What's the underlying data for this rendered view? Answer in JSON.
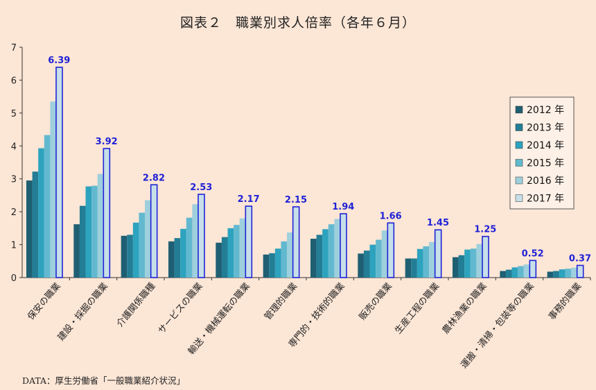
{
  "chart_data": {
    "type": "bar",
    "title": "図表２　職業別求人倍率（各年６月）",
    "source": "DATA：厚生労働省「一般職業紹介状況」",
    "ylim": [
      0,
      7
    ],
    "yticks": [
      "0",
      "1",
      "2",
      "3",
      "4",
      "5",
      "6",
      "7"
    ],
    "grid": false,
    "legend_position": "right",
    "categories": [
      "保安の職業",
      "建設・採掘の職業",
      "介護関係職種",
      "サービスの職業",
      "輸送・機械運転の職業",
      "管理的職業",
      "専門的・技術的職業",
      "販売の職業",
      "生産工程の職業",
      "農林漁業の職業",
      "運搬・清掃・包装等の職業",
      "事務的職業"
    ],
    "series": [
      {
        "name": "2012 年",
        "color": "#1f5f73",
        "values": [
          2.95,
          1.62,
          1.27,
          1.1,
          1.06,
          0.7,
          1.18,
          0.73,
          0.58,
          0.62,
          0.2,
          0.18
        ]
      },
      {
        "name": "2013 年",
        "color": "#227d95",
        "values": [
          3.22,
          2.18,
          1.3,
          1.2,
          1.23,
          0.74,
          1.3,
          0.82,
          0.58,
          0.68,
          0.24,
          0.2
        ]
      },
      {
        "name": "2014 年",
        "color": "#2da3be",
        "values": [
          3.93,
          2.77,
          1.67,
          1.48,
          1.5,
          0.88,
          1.47,
          1.0,
          0.87,
          0.85,
          0.31,
          0.25
        ]
      },
      {
        "name": "2015 年",
        "color": "#62b9cf",
        "values": [
          4.33,
          2.79,
          1.97,
          1.82,
          1.6,
          1.1,
          1.62,
          1.15,
          0.95,
          0.88,
          0.35,
          0.27
        ]
      },
      {
        "name": "2016 年",
        "color": "#9ecfdd",
        "values": [
          5.35,
          3.15,
          2.35,
          2.23,
          1.8,
          1.37,
          1.78,
          1.43,
          1.08,
          1.02,
          0.4,
          0.3
        ]
      },
      {
        "name": "2017 年",
        "color": "#c6dfe8",
        "values": [
          6.39,
          3.92,
          2.82,
          2.53,
          2.17,
          2.15,
          1.94,
          1.66,
          1.45,
          1.25,
          0.52,
          0.37
        ]
      }
    ],
    "data_labels": [
      "6.39",
      "3.92",
      "2.82",
      "2.53",
      "2.17",
      "2.15",
      "1.94",
      "1.66",
      "1.45",
      "1.25",
      "0.52",
      "0.37"
    ],
    "highlight_color": "#1f22d6"
  }
}
